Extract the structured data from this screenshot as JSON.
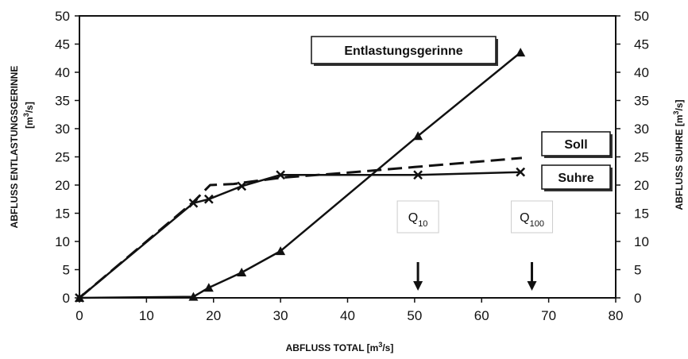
{
  "chart_data": {
    "type": "line",
    "title": "",
    "xlabel": "ABFLUSS TOTAL [m3/s]",
    "ylabel_left": [
      "ABFLUSS ENTLASTUNGSGERINNE",
      "[m3/s]"
    ],
    "ylabel_right": [
      "ABFLUSS SUHRE [m3/s]"
    ],
    "xlim": [
      0,
      80
    ],
    "ylim": [
      0,
      50
    ],
    "xticks": [
      "0",
      "10",
      "20",
      "30",
      "40",
      "50",
      "60",
      "70",
      "80"
    ],
    "yticks_left": [
      "0",
      "5",
      "10",
      "15",
      "20",
      "25",
      "30",
      "35",
      "40",
      "45",
      "50"
    ],
    "yticks_right": [
      "0",
      "5",
      "10",
      "15",
      "20",
      "25",
      "30",
      "35",
      "40",
      "45",
      "50"
    ],
    "grid": false,
    "series": [
      {
        "name": "Entlastungsgerinne",
        "style": "solid",
        "marker": "triangle",
        "points": [
          [
            0,
            0
          ],
          [
            17,
            0.2
          ],
          [
            19.3,
            1.8
          ],
          [
            24.2,
            4.5
          ],
          [
            30,
            8.3
          ],
          [
            50.5,
            28.7
          ],
          [
            65.8,
            43.5
          ]
        ]
      },
      {
        "name": "Soll",
        "style": "dashed",
        "marker": "none",
        "points": [
          [
            0,
            0
          ],
          [
            17,
            17
          ],
          [
            19.5,
            20
          ],
          [
            23,
            20.2
          ],
          [
            30,
            21.3
          ],
          [
            40,
            22.2
          ],
          [
            50,
            23.2
          ],
          [
            66,
            24.8
          ]
        ]
      },
      {
        "name": "Suhre",
        "style": "solid",
        "marker": "cross",
        "points": [
          [
            0,
            0
          ],
          [
            17,
            16.8
          ],
          [
            19.3,
            17.5
          ],
          [
            24.2,
            19.8
          ],
          [
            30,
            21.8
          ],
          [
            50.5,
            21.8
          ],
          [
            65.8,
            22.3
          ]
        ]
      }
    ],
    "annotations": [
      {
        "label_main": "Q",
        "label_sub": "10",
        "x": 50.5
      },
      {
        "label_main": "Q",
        "label_sub": "100",
        "x": 67.5
      }
    ]
  }
}
